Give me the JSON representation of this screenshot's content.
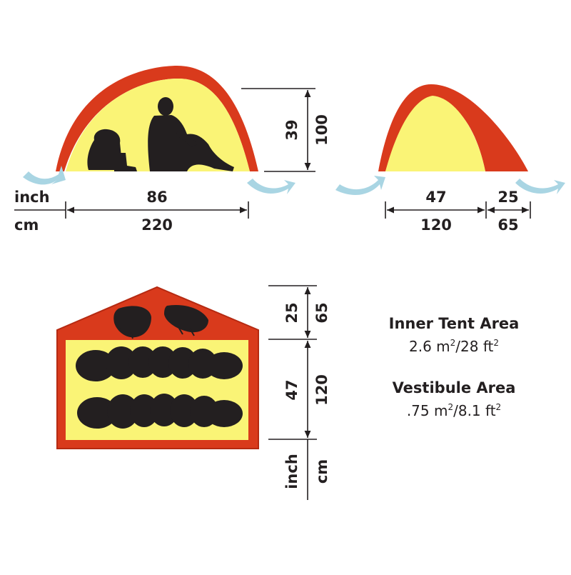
{
  "colors": {
    "fly": "#d93a1c",
    "fly_edge": "#b52a12",
    "inner": "#faf476",
    "silhouette": "#231f20",
    "vent_arrow": "#a9d5e3",
    "line": "#231f20"
  },
  "units": {
    "inch": "inch",
    "cm": "cm"
  },
  "side_view": {
    "width_inch": "86",
    "width_cm": "220",
    "inner_height_inch": "39",
    "inner_height_cm": "100"
  },
  "end_view": {
    "inner_width_inch": "47",
    "inner_width_cm": "120",
    "vestibule_depth_inch": "25",
    "vestibule_depth_cm": "65"
  },
  "floor_plan": {
    "vestibule_inch": "25",
    "vestibule_cm": "65",
    "inner_inch": "47",
    "inner_cm": "120",
    "unit_inch": "inch",
    "unit_cm": "cm"
  },
  "areas": {
    "inner_title": "Inner Tent Area",
    "inner_m": "2.6 m",
    "inner_sep": "/28 ft",
    "vestibule_title": "Vestibule Area",
    "vestibule_m": ".75 m",
    "vestibule_sep": "/8.1 ft",
    "squared": "2"
  }
}
